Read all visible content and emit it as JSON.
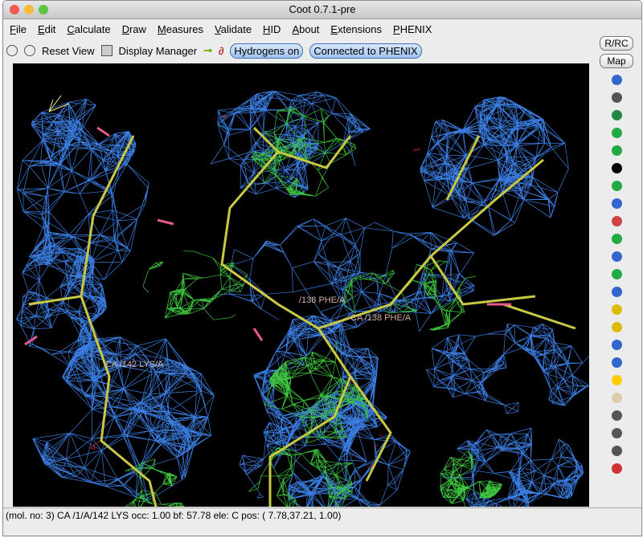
{
  "window": {
    "title": "Coot 0.7.1-pre"
  },
  "menu": [
    "File",
    "Edit",
    "Calculate",
    "Draw",
    "Measures",
    "Validate",
    "HID",
    "About",
    "Extensions",
    "PHENIX"
  ],
  "toolbar": {
    "buttons": [
      "Reset View",
      "Display Manager"
    ],
    "toggles": [
      "Hydrogens on",
      "Connected to PHENIX"
    ]
  },
  "side_panel": {
    "buttons": [
      "R/RC",
      "Map"
    ]
  },
  "viewport": {
    "labels": [
      "CA /142 LYS/A",
      "/138 PHE/A",
      "CA /138 PHE/A"
    ]
  },
  "status_bar": {
    "text": "(mol. no: 3)  CA /1/A/142 LYS occ:  1.00 bf: 57.78 ele:  C pos: ( 7.78,37.21, 1.00)"
  }
}
